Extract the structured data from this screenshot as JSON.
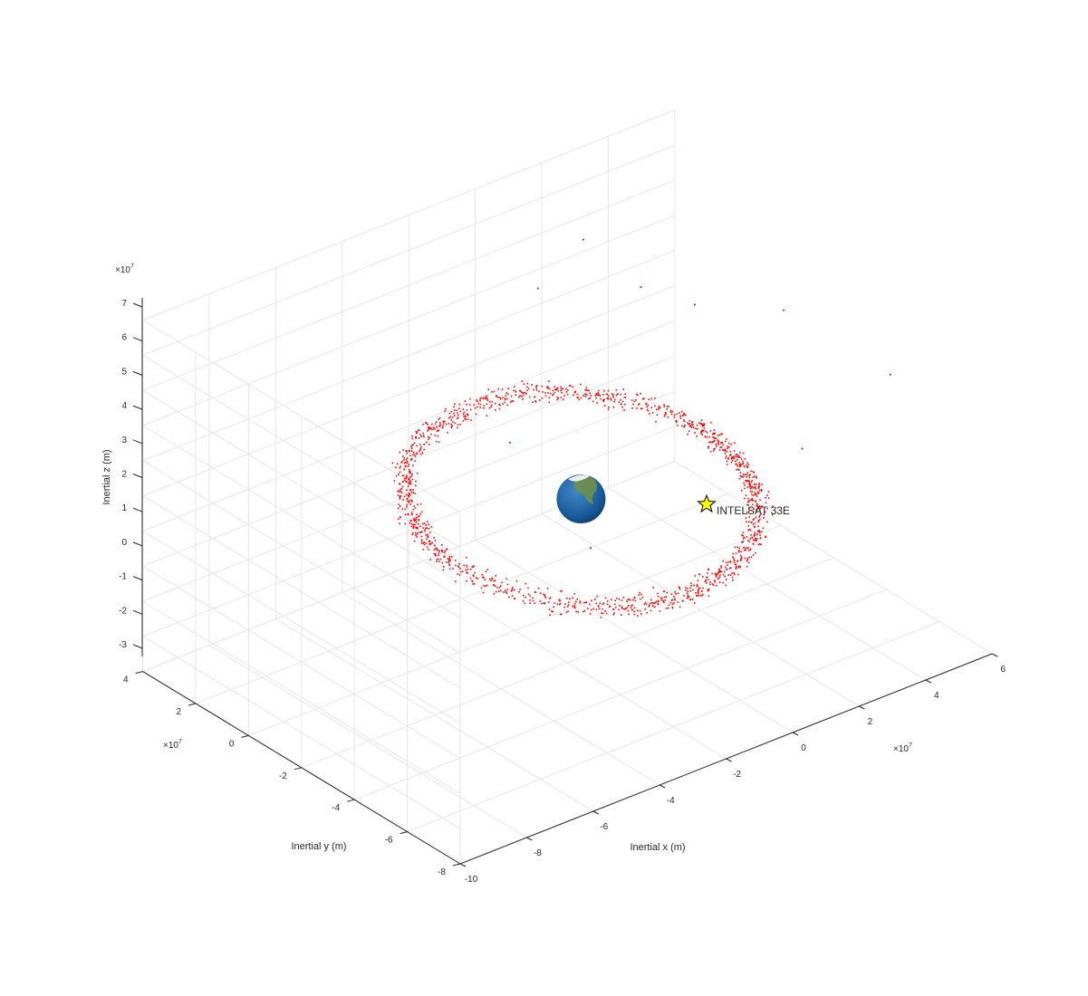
{
  "chart_data": {
    "type": "scatter",
    "projection": "3d",
    "title": "",
    "xlabel": "Inertial x (m)",
    "ylabel": "Inertial y (m)",
    "zlabel": "Inertial z (m)",
    "x_multiplier_label": "×10",
    "x_multiplier_exp": "7",
    "y_multiplier_label": "×10",
    "y_multiplier_exp": "7",
    "z_multiplier_label": "×10",
    "z_multiplier_exp": "7",
    "xlim": [
      -10,
      6
    ],
    "ylim": [
      -8,
      4
    ],
    "zlim": [
      -3,
      7
    ],
    "x_ticks": [
      -10,
      -8,
      -6,
      -4,
      -2,
      0,
      2,
      4,
      6
    ],
    "y_ticks": [
      -8,
      -6,
      -4,
      -2,
      0,
      2,
      4
    ],
    "z_ticks": [
      -3,
      -2,
      -1,
      0,
      1,
      2,
      3,
      4,
      5,
      6,
      7
    ],
    "grid": true,
    "earth": {
      "label": "",
      "center": [
        0,
        0,
        0
      ],
      "color": "#1f5fa6"
    },
    "debris_series": {
      "name": "",
      "color": "#ff0000",
      "orbit_radius": 4.2,
      "orbit_tilt_deg": 10,
      "point_count": 1500,
      "outliers": [
        [
          -0.9,
          0.5,
          6.1
        ],
        [
          1.5,
          1.8,
          6.0
        ],
        [
          4.5,
          -2.0,
          4.6
        ],
        [
          3.9,
          0.6,
          3.8
        ],
        [
          2.6,
          1.0,
          4.6
        ],
        [
          6.2,
          -3.9,
          3.0
        ],
        [
          4.9,
          -2.2,
          0.6
        ],
        [
          -1.3,
          -2.0,
          0.0
        ],
        [
          -1.5,
          0.8,
          1.8
        ]
      ]
    },
    "highlight": {
      "label": "INTELSAT 33E",
      "marker": "star",
      "marker_color": "#ffff00",
      "position": [
        3.4,
        -3.1,
        1.8
      ]
    }
  }
}
